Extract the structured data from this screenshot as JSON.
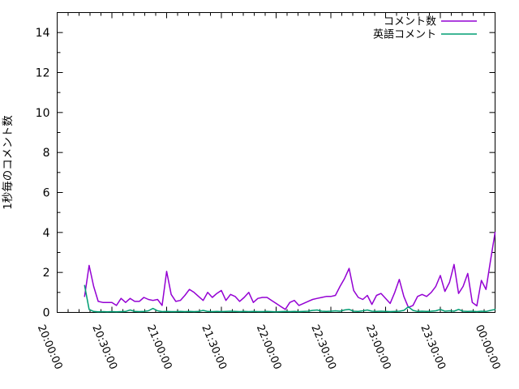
{
  "chart_data": {
    "type": "line",
    "title": "",
    "xlabel": "",
    "ylabel": "1秒毎のコメント数",
    "ylim": [
      0,
      15
    ],
    "yticks": [
      0,
      2,
      4,
      6,
      8,
      10,
      12,
      14
    ],
    "y_minor_step": 1,
    "grid": false,
    "background_color": "#ffffff",
    "axis_color": "#000000",
    "legend": {
      "position": "top-right-inside",
      "entries": [
        "コメント数",
        "英語コメント"
      ]
    },
    "x_axis": {
      "tick_labels": [
        "20:00:00",
        "20:30:00",
        "21:00:00",
        "21:30:00",
        "22:00:00",
        "22:30:00",
        "23:00:00",
        "23:30:00",
        "00:00:00"
      ],
      "tick_minutes": [
        0,
        30,
        60,
        90,
        120,
        150,
        180,
        210,
        240
      ],
      "minor_tick_step_minutes": 6
    },
    "x_minutes": [
      15,
      17.5,
      20,
      22.5,
      25,
      27.5,
      30,
      32.5,
      35,
      37.5,
      40,
      42.5,
      45,
      47.5,
      50,
      52.5,
      55,
      57.5,
      60,
      62.5,
      65,
      67.5,
      70,
      72.5,
      75,
      77.5,
      80,
      82.5,
      85,
      87.5,
      90,
      92.5,
      95,
      97.5,
      100,
      102.5,
      105,
      107.5,
      110,
      112.5,
      115,
      117.5,
      120,
      122.5,
      125,
      127.5,
      130,
      132.5,
      135,
      137.5,
      140,
      142.5,
      145,
      147.5,
      150,
      152.5,
      155,
      157.5,
      160,
      162.5,
      165,
      167.5,
      170,
      172.5,
      175,
      177.5,
      180,
      182.5,
      185,
      187.5,
      190,
      192.5,
      195,
      197.5,
      200,
      202.5,
      205,
      207.5,
      210,
      212.5,
      215,
      217.5,
      220,
      222.5,
      225,
      227.5,
      230,
      232.5,
      235,
      237.5,
      240
    ],
    "series": [
      {
        "name": "コメント数",
        "color": "#9400d3",
        "values": [
          0.8,
          2.35,
          1.3,
          0.55,
          0.5,
          0.5,
          0.5,
          0.35,
          0.7,
          0.5,
          0.7,
          0.55,
          0.55,
          0.75,
          0.65,
          0.6,
          0.65,
          0.35,
          2.05,
          0.9,
          0.55,
          0.6,
          0.85,
          1.15,
          1.0,
          0.8,
          0.6,
          1.0,
          0.75,
          0.95,
          1.1,
          0.6,
          0.9,
          0.8,
          0.55,
          0.75,
          1.0,
          0.5,
          0.7,
          0.75,
          0.75,
          0.6,
          0.45,
          0.3,
          0.15,
          0.5,
          0.6,
          0.35,
          0.45,
          0.55,
          0.65,
          0.7,
          0.75,
          0.8,
          0.8,
          0.85,
          1.3,
          1.7,
          2.2,
          1.1,
          0.75,
          0.65,
          0.85,
          0.4,
          0.85,
          0.95,
          0.7,
          0.45,
          1.0,
          1.65,
          0.8,
          0.25,
          0.35,
          0.8,
          0.9,
          0.8,
          1.0,
          1.3,
          1.85,
          1.05,
          1.5,
          2.4,
          0.95,
          1.3,
          1.95,
          0.5,
          0.33,
          1.6,
          1.15,
          2.6,
          4.0
        ]
      },
      {
        "name": "英語コメント",
        "color": "#009e73",
        "values": [
          1.35,
          0.15,
          0.05,
          0.03,
          0.04,
          0.03,
          0.04,
          0.03,
          0.04,
          0.05,
          0.12,
          0.05,
          0.04,
          0.05,
          0.08,
          0.2,
          0.08,
          0.04,
          0.05,
          0.04,
          0.04,
          0.05,
          0.04,
          0.05,
          0.04,
          0.05,
          0.1,
          0.05,
          0.04,
          0.05,
          0.04,
          0.05,
          0.06,
          0.05,
          0.04,
          0.05,
          0.04,
          0.05,
          0.04,
          0.04,
          0.05,
          0.04,
          0.03,
          0.04,
          0.05,
          0.04,
          0.05,
          0.04,
          0.05,
          0.06,
          0.1,
          0.12,
          0.06,
          0.05,
          0.06,
          0.08,
          0.06,
          0.12,
          0.15,
          0.06,
          0.05,
          0.08,
          0.12,
          0.06,
          0.05,
          0.06,
          0.05,
          0.04,
          0.05,
          0.06,
          0.1,
          0.28,
          0.1,
          0.05,
          0.06,
          0.05,
          0.06,
          0.08,
          0.15,
          0.06,
          0.08,
          0.06,
          0.15,
          0.06,
          0.05,
          0.06,
          0.04,
          0.06,
          0.05,
          0.1,
          0.15
        ]
      }
    ]
  }
}
